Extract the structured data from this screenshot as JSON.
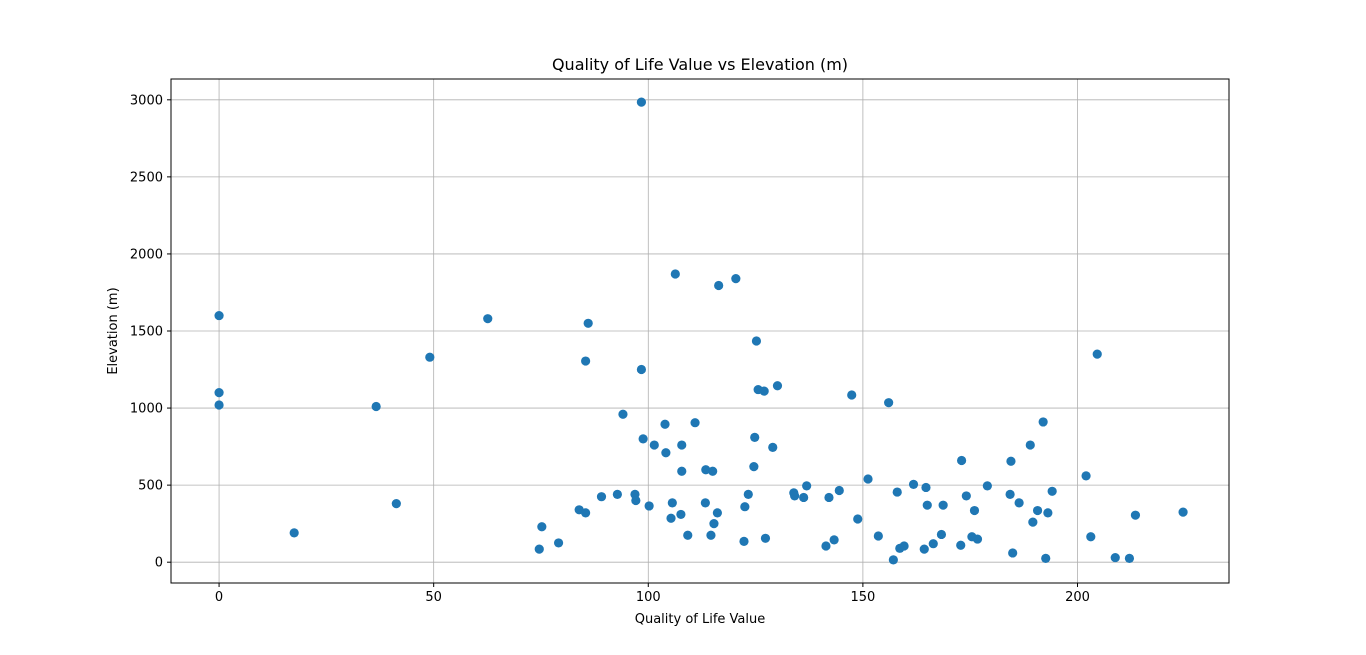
{
  "chart_data": {
    "type": "scatter",
    "title": "Quality of Life Value vs Elevation (m)",
    "xlabel": "Quality of Life Value",
    "ylabel": "Elevation (m)",
    "xlim": [
      -11.2,
      235.3
    ],
    "ylim": [
      -135,
      3135
    ],
    "xticks": [
      0,
      50,
      100,
      150,
      200
    ],
    "yticks": [
      0,
      500,
      1000,
      1500,
      2000,
      2500,
      3000
    ],
    "xtick_labels": [
      "0",
      "50",
      "100",
      "150",
      "200"
    ],
    "ytick_labels": [
      "0",
      "500",
      "1000",
      "1500",
      "2000",
      "2500",
      "3000"
    ],
    "grid": true,
    "color": "#1f77b4",
    "points": [
      {
        "x": 0,
        "y": 1600
      },
      {
        "x": 0,
        "y": 1100
      },
      {
        "x": 0,
        "y": 1020
      },
      {
        "x": 17.5,
        "y": 190
      },
      {
        "x": 36.6,
        "y": 1010
      },
      {
        "x": 41.3,
        "y": 380
      },
      {
        "x": 49.1,
        "y": 1330
      },
      {
        "x": 62.6,
        "y": 1580
      },
      {
        "x": 74.6,
        "y": 85
      },
      {
        "x": 75.2,
        "y": 230
      },
      {
        "x": 79.1,
        "y": 125
      },
      {
        "x": 83.9,
        "y": 340
      },
      {
        "x": 85.4,
        "y": 320
      },
      {
        "x": 85.4,
        "y": 1305
      },
      {
        "x": 86.0,
        "y": 1550
      },
      {
        "x": 89.1,
        "y": 425
      },
      {
        "x": 92.8,
        "y": 440
      },
      {
        "x": 94.1,
        "y": 960
      },
      {
        "x": 96.9,
        "y": 440
      },
      {
        "x": 97.1,
        "y": 400
      },
      {
        "x": 98.4,
        "y": 2985
      },
      {
        "x": 98.4,
        "y": 1250
      },
      {
        "x": 98.8,
        "y": 800
      },
      {
        "x": 100.2,
        "y": 365
      },
      {
        "x": 101.4,
        "y": 760
      },
      {
        "x": 103.9,
        "y": 895
      },
      {
        "x": 104.1,
        "y": 710
      },
      {
        "x": 105.3,
        "y": 285
      },
      {
        "x": 105.6,
        "y": 385
      },
      {
        "x": 106.3,
        "y": 1870
      },
      {
        "x": 107.6,
        "y": 310
      },
      {
        "x": 107.8,
        "y": 760
      },
      {
        "x": 107.8,
        "y": 590
      },
      {
        "x": 109.2,
        "y": 175
      },
      {
        "x": 110.9,
        "y": 905
      },
      {
        "x": 113.3,
        "y": 385
      },
      {
        "x": 113.4,
        "y": 600
      },
      {
        "x": 114.6,
        "y": 175
      },
      {
        "x": 115.0,
        "y": 590
      },
      {
        "x": 115.3,
        "y": 250
      },
      {
        "x": 116.1,
        "y": 320
      },
      {
        "x": 116.4,
        "y": 1795
      },
      {
        "x": 120.4,
        "y": 1840
      },
      {
        "x": 122.3,
        "y": 135
      },
      {
        "x": 122.5,
        "y": 360
      },
      {
        "x": 123.3,
        "y": 440
      },
      {
        "x": 124.6,
        "y": 620
      },
      {
        "x": 124.8,
        "y": 810
      },
      {
        "x": 125.2,
        "y": 1435
      },
      {
        "x": 125.6,
        "y": 1120
      },
      {
        "x": 127.0,
        "y": 1110
      },
      {
        "x": 127.3,
        "y": 155
      },
      {
        "x": 129.0,
        "y": 745
      },
      {
        "x": 130.1,
        "y": 1145
      },
      {
        "x": 133.9,
        "y": 450
      },
      {
        "x": 134.1,
        "y": 430
      },
      {
        "x": 136.2,
        "y": 420
      },
      {
        "x": 136.9,
        "y": 495
      },
      {
        "x": 141.4,
        "y": 105
      },
      {
        "x": 142.1,
        "y": 420
      },
      {
        "x": 143.3,
        "y": 145
      },
      {
        "x": 144.5,
        "y": 465
      },
      {
        "x": 147.4,
        "y": 1085
      },
      {
        "x": 148.8,
        "y": 280
      },
      {
        "x": 151.2,
        "y": 540
      },
      {
        "x": 153.6,
        "y": 170
      },
      {
        "x": 156.0,
        "y": 1035
      },
      {
        "x": 157.1,
        "y": 15
      },
      {
        "x": 158.0,
        "y": 455
      },
      {
        "x": 158.6,
        "y": 90
      },
      {
        "x": 159.6,
        "y": 105
      },
      {
        "x": 161.8,
        "y": 505
      },
      {
        "x": 164.3,
        "y": 85
      },
      {
        "x": 164.7,
        "y": 485
      },
      {
        "x": 165.0,
        "y": 370
      },
      {
        "x": 166.4,
        "y": 120
      },
      {
        "x": 168.3,
        "y": 180
      },
      {
        "x": 168.7,
        "y": 370
      },
      {
        "x": 172.8,
        "y": 110
      },
      {
        "x": 173.0,
        "y": 660
      },
      {
        "x": 174.1,
        "y": 430
      },
      {
        "x": 175.4,
        "y": 165
      },
      {
        "x": 176.0,
        "y": 335
      },
      {
        "x": 176.7,
        "y": 150
      },
      {
        "x": 179.0,
        "y": 495
      },
      {
        "x": 184.3,
        "y": 440
      },
      {
        "x": 184.5,
        "y": 655
      },
      {
        "x": 184.9,
        "y": 60
      },
      {
        "x": 186.4,
        "y": 385
      },
      {
        "x": 189.0,
        "y": 760
      },
      {
        "x": 189.6,
        "y": 260
      },
      {
        "x": 190.7,
        "y": 335
      },
      {
        "x": 192.0,
        "y": 910
      },
      {
        "x": 192.6,
        "y": 25
      },
      {
        "x": 193.1,
        "y": 320
      },
      {
        "x": 194.1,
        "y": 460
      },
      {
        "x": 202.0,
        "y": 560
      },
      {
        "x": 203.1,
        "y": 165
      },
      {
        "x": 204.6,
        "y": 1350
      },
      {
        "x": 208.8,
        "y": 30
      },
      {
        "x": 212.1,
        "y": 25
      },
      {
        "x": 213.5,
        "y": 305
      },
      {
        "x": 224.6,
        "y": 325
      }
    ]
  }
}
